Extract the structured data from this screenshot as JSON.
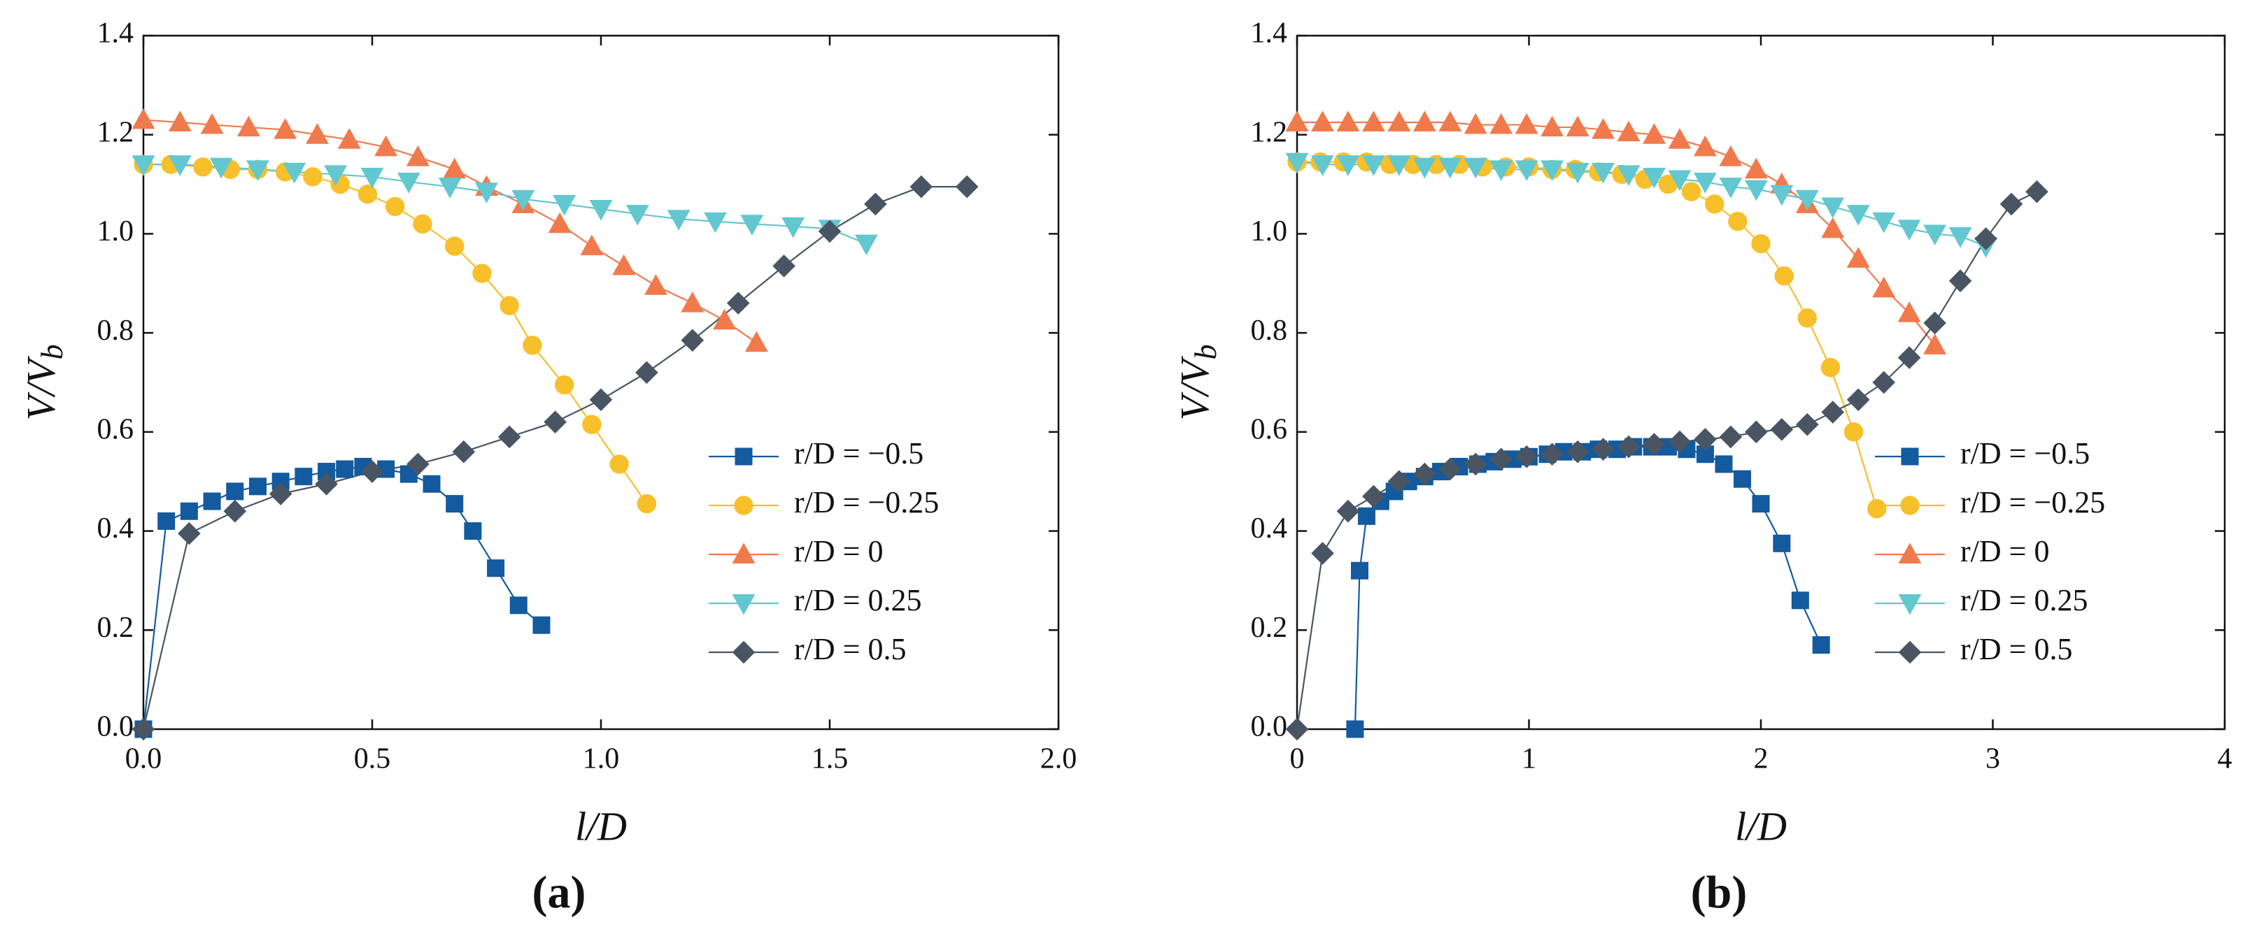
{
  "chart_data": [
    {
      "type": "line",
      "panel_label": "(a)",
      "xlabel": "l/D",
      "ylabel": "V/V",
      "ylabel_subscript": "b",
      "xlim": [
        0,
        2
      ],
      "xticks": [
        {
          "value": 0,
          "label": "0.0"
        },
        0.5,
        {
          "value": 1,
          "label": "1.0"
        },
        1.5,
        {
          "value": 2,
          "label": "2.0"
        }
      ],
      "ylim": [
        0,
        1.4
      ],
      "yticks": [
        {
          "value": 0,
          "label": "0.0"
        },
        0.2,
        0.4,
        0.6,
        0.8,
        {
          "value": 1,
          "label": "1.0"
        },
        1.2,
        1.4
      ],
      "legend": "lower right",
      "series": [
        {
          "name": "r/D = −0.5",
          "color": "#135a9e",
          "marker": "square",
          "x": [
            0,
            0.05,
            0.1,
            0.15,
            0.2,
            0.25,
            0.3,
            0.35,
            0.4,
            0.44,
            0.48,
            0.53,
            0.58,
            0.63,
            0.68,
            0.72,
            0.77,
            0.82,
            0.87
          ],
          "values": [
            0,
            0.42,
            0.44,
            0.46,
            0.48,
            0.49,
            0.5,
            0.51,
            0.52,
            0.525,
            0.53,
            0.525,
            0.515,
            0.495,
            0.455,
            0.4,
            0.325,
            0.25,
            0.21
          ]
        },
        {
          "name": "r/D = −0.25",
          "color": "#f7bf2a",
          "marker": "circle",
          "x": [
            0,
            0.06,
            0.13,
            0.19,
            0.25,
            0.31,
            0.37,
            0.43,
            0.49,
            0.55,
            0.61,
            0.68,
            0.74,
            0.8,
            0.85,
            0.92,
            0.98,
            1.04,
            1.1
          ],
          "values": [
            1.14,
            1.14,
            1.135,
            1.13,
            1.13,
            1.125,
            1.115,
            1.1,
            1.08,
            1.055,
            1.02,
            0.975,
            0.92,
            0.855,
            0.775,
            0.695,
            0.615,
            0.535,
            0.455
          ]
        },
        {
          "name": "r/D = 0",
          "color": "#f07a4c",
          "marker": "triangle-up",
          "x": [
            0,
            0.08,
            0.15,
            0.23,
            0.31,
            0.38,
            0.45,
            0.53,
            0.6,
            0.68,
            0.75,
            0.83,
            0.91,
            0.98,
            1.05,
            1.12,
            1.2,
            1.27,
            1.34
          ],
          "values": [
            1.23,
            1.225,
            1.22,
            1.215,
            1.21,
            1.2,
            1.19,
            1.175,
            1.155,
            1.13,
            1.095,
            1.06,
            1.02,
            0.975,
            0.935,
            0.895,
            0.86,
            0.825,
            0.78
          ]
        },
        {
          "name": "r/D = 0.25",
          "color": "#62c7cf",
          "marker": "triangle-down",
          "x": [
            0,
            0.08,
            0.17,
            0.25,
            0.33,
            0.42,
            0.5,
            0.58,
            0.67,
            0.75,
            0.83,
            0.92,
            1.0,
            1.08,
            1.17,
            1.25,
            1.33,
            1.42,
            1.5,
            1.58
          ],
          "values": [
            1.14,
            1.14,
            1.135,
            1.13,
            1.125,
            1.12,
            1.115,
            1.105,
            1.095,
            1.085,
            1.07,
            1.06,
            1.05,
            1.04,
            1.03,
            1.025,
            1.02,
            1.015,
            1.01,
            0.98
          ]
        },
        {
          "name": "r/D = 0.5",
          "color": "#4a5563",
          "marker": "diamond",
          "x": [
            0,
            0.1,
            0.2,
            0.3,
            0.4,
            0.5,
            0.6,
            0.7,
            0.8,
            0.9,
            1.0,
            1.1,
            1.2,
            1.3,
            1.4,
            1.5,
            1.6,
            1.7,
            1.8
          ],
          "values": [
            0,
            0.395,
            0.44,
            0.475,
            0.495,
            0.52,
            0.535,
            0.56,
            0.59,
            0.62,
            0.665,
            0.72,
            0.785,
            0.86,
            0.935,
            1.005,
            1.06,
            1.095,
            1.095
          ]
        }
      ]
    },
    {
      "type": "line",
      "panel_label": "(b)",
      "xlabel": "l/D",
      "ylabel": "V/V",
      "ylabel_subscript": "b",
      "xlim": [
        0,
        4
      ],
      "xticks": [
        0,
        1,
        2,
        3,
        4
      ],
      "ylim": [
        0,
        1.4
      ],
      "yticks": [
        {
          "value": 0,
          "label": "0.0"
        },
        0.2,
        0.4,
        0.6,
        0.8,
        {
          "value": 1,
          "label": "1.0"
        },
        1.2,
        1.4
      ],
      "legend": "lower right",
      "series": [
        {
          "name": "r/D = −0.5",
          "color": "#135a9e",
          "marker": "square",
          "x": [
            0.25,
            0.27,
            0.3,
            0.36,
            0.42,
            0.48,
            0.55,
            0.62,
            0.7,
            0.78,
            0.85,
            0.93,
            1.0,
            1.08,
            1.15,
            1.23,
            1.3,
            1.38,
            1.45,
            1.53,
            1.6,
            1.68,
            1.76,
            1.84,
            1.92,
            2.0,
            2.09,
            2.17,
            2.26
          ],
          "values": [
            0,
            0.32,
            0.43,
            0.46,
            0.48,
            0.5,
            0.51,
            0.52,
            0.53,
            0.535,
            0.54,
            0.545,
            0.55,
            0.555,
            0.56,
            0.56,
            0.565,
            0.565,
            0.57,
            0.57,
            0.57,
            0.565,
            0.555,
            0.535,
            0.505,
            0.455,
            0.375,
            0.26,
            0.17
          ]
        },
        {
          "name": "r/D = −0.25",
          "color": "#f7bf2a",
          "marker": "circle",
          "x": [
            0,
            0.1,
            0.2,
            0.3,
            0.4,
            0.5,
            0.6,
            0.7,
            0.8,
            0.9,
            1.0,
            1.1,
            1.2,
            1.3,
            1.4,
            1.5,
            1.6,
            1.7,
            1.8,
            1.9,
            2.0,
            2.1,
            2.2,
            2.3,
            2.4,
            2.5
          ],
          "values": [
            1.145,
            1.145,
            1.145,
            1.145,
            1.14,
            1.14,
            1.14,
            1.14,
            1.135,
            1.135,
            1.135,
            1.13,
            1.13,
            1.125,
            1.12,
            1.11,
            1.1,
            1.085,
            1.06,
            1.025,
            0.98,
            0.915,
            0.83,
            0.73,
            0.6,
            0.445
          ]
        },
        {
          "name": "r/D = 0",
          "color": "#f07a4c",
          "marker": "triangle-up",
          "x": [
            0,
            0.11,
            0.22,
            0.33,
            0.44,
            0.55,
            0.66,
            0.77,
            0.88,
            0.99,
            1.1,
            1.21,
            1.32,
            1.43,
            1.54,
            1.65,
            1.76,
            1.87,
            1.98,
            2.09,
            2.2,
            2.31,
            2.42,
            2.53,
            2.64,
            2.75
          ],
          "values": [
            1.225,
            1.225,
            1.225,
            1.225,
            1.225,
            1.225,
            1.225,
            1.22,
            1.22,
            1.22,
            1.215,
            1.215,
            1.21,
            1.205,
            1.2,
            1.19,
            1.175,
            1.155,
            1.13,
            1.1,
            1.06,
            1.01,
            0.95,
            0.89,
            0.84,
            0.775
          ]
        },
        {
          "name": "r/D = 0.25",
          "color": "#62c7cf",
          "marker": "triangle-down",
          "x": [
            0,
            0.11,
            0.22,
            0.33,
            0.44,
            0.55,
            0.66,
            0.77,
            0.88,
            0.99,
            1.1,
            1.21,
            1.32,
            1.43,
            1.54,
            1.65,
            1.76,
            1.87,
            1.98,
            2.09,
            2.2,
            2.31,
            2.42,
            2.53,
            2.64,
            2.75,
            2.86,
            2.97
          ],
          "values": [
            1.145,
            1.14,
            1.14,
            1.14,
            1.14,
            1.135,
            1.135,
            1.135,
            1.13,
            1.13,
            1.13,
            1.125,
            1.125,
            1.12,
            1.115,
            1.11,
            1.105,
            1.095,
            1.09,
            1.08,
            1.07,
            1.055,
            1.04,
            1.025,
            1.01,
            1.0,
            0.995,
            0.975
          ]
        },
        {
          "name": "r/D = 0.5",
          "color": "#4a5563",
          "marker": "diamond",
          "x": [
            0,
            0.11,
            0.22,
            0.33,
            0.44,
            0.55,
            0.66,
            0.77,
            0.88,
            0.99,
            1.1,
            1.21,
            1.32,
            1.43,
            1.54,
            1.65,
            1.76,
            1.87,
            1.98,
            2.09,
            2.2,
            2.31,
            2.42,
            2.53,
            2.64,
            2.75,
            2.86,
            2.97,
            3.08,
            3.19
          ],
          "values": [
            0,
            0.355,
            0.44,
            0.47,
            0.5,
            0.515,
            0.525,
            0.535,
            0.545,
            0.55,
            0.555,
            0.56,
            0.565,
            0.57,
            0.575,
            0.58,
            0.585,
            0.59,
            0.6,
            0.605,
            0.615,
            0.64,
            0.665,
            0.7,
            0.75,
            0.82,
            0.905,
            0.99,
            1.06,
            1.085
          ]
        }
      ]
    }
  ]
}
